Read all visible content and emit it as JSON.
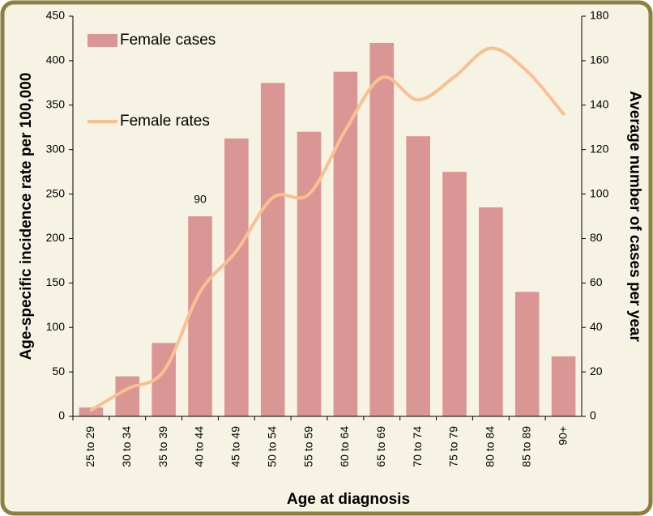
{
  "chart_data": {
    "type": "bar_line",
    "x_label": "Age at diagnosis",
    "y_label": "Age-specific incidence rate per 100,000",
    "y2_label": "Average number of cases per year",
    "categories": [
      "25 to 29",
      "30 to 34",
      "35 to 39",
      "40 to 44",
      "45 to 49",
      "50 to 54",
      "55 to 59",
      "60 to 64",
      "65 to 69",
      "70 to 74",
      "75 to 79",
      "80 to 84",
      "85 to 89",
      "90+"
    ],
    "series": [
      {
        "name": "Female cases",
        "type": "bar",
        "axis": "y2",
        "color": "#d99694",
        "values": [
          4,
          18,
          33,
          90,
          125,
          150,
          128,
          155,
          168,
          126,
          110,
          94,
          56,
          27
        ],
        "value_labels": [
          null,
          null,
          null,
          "90",
          null,
          null,
          null,
          null,
          null,
          null,
          null,
          null,
          null,
          null
        ]
      },
      {
        "name": "Female rates",
        "type": "line",
        "axis": "y",
        "color": "#fac090",
        "values": [
          7,
          31,
          51,
          140,
          186,
          246,
          250,
          322,
          381,
          356,
          382,
          414,
          388,
          340
        ]
      }
    ],
    "ylim": [
      0,
      450
    ],
    "yticks": [
      0,
      50,
      100,
      150,
      200,
      250,
      300,
      350,
      400,
      450
    ],
    "y2lim": [
      0,
      180
    ],
    "y2ticks": [
      0,
      20,
      40,
      60,
      80,
      100,
      120,
      140,
      160,
      180
    ],
    "legend": "upper left",
    "grid": false
  }
}
